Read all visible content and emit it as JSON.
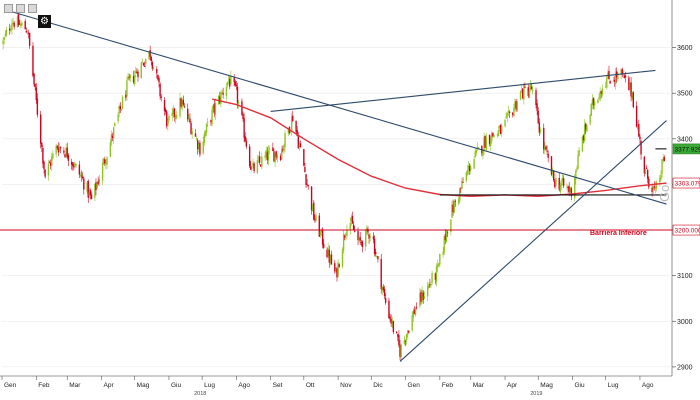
{
  "chart_data": {
    "type": "candlestick",
    "title": "",
    "xlabel": "",
    "ylabel": "",
    "ylim": [
      2880,
      3700
    ],
    "y_ticks": [
      2900,
      3000,
      3100,
      3200,
      3300,
      3400,
      3500,
      3600
    ],
    "x_ticks": [
      "Gen",
      "Feb",
      "Mar",
      "Apr",
      "Mag",
      "Giu",
      "Lug",
      "Ago",
      "Set",
      "Ott",
      "Nov",
      "Dic",
      "Gen",
      "Feb",
      "Mar",
      "Apr",
      "Mag",
      "Giu",
      "Lug",
      "Ago"
    ],
    "year_labels": [
      "2018",
      "2019"
    ],
    "price_tags": [
      {
        "label": "3377.9299",
        "value": 3377.93,
        "color": "#3aa935",
        "text_color": "#111111"
      },
      {
        "label": "3303.0791",
        "value": 3303.08,
        "color": "#ffffff",
        "text_color": "#d0021b"
      },
      {
        "label": "3200.0000",
        "value": 3200.0,
        "color": "#ffffff",
        "text_color": "#d0021b"
      }
    ],
    "barrier": {
      "label": "Barriera Inferiore",
      "value": 3200
    },
    "annotations": {
      "horizontal_support": {
        "from": "2019-02-01",
        "to": "2019-08-25",
        "value": 3277
      },
      "resistance_segment": {
        "from": "2019-08-15",
        "to": "2019-08-25",
        "value": 3378
      }
    },
    "trendlines": [
      {
        "name": "",
        "from": [
          "2018-01-08",
          3680
        ],
        "to": [
          "2019-08-25",
          3257
        ]
      },
      {
        "name": "",
        "from": [
          "2018-09-01",
          3460
        ],
        "to": [
          "2019-08-15",
          3550
        ]
      },
      {
        "name": "",
        "from": [
          "2018-12-27",
          2912
        ],
        "to": [
          "2019-08-25",
          3440
        ]
      }
    ],
    "moving_average": {
      "color": "#e0303a",
      "points": [
        [
          "2018-07-10",
          3487
        ],
        [
          "2018-08-01",
          3475
        ],
        [
          "2018-09-01",
          3446
        ],
        [
          "2018-10-01",
          3400
        ],
        [
          "2018-11-01",
          3355
        ],
        [
          "2018-12-01",
          3318
        ],
        [
          "2019-01-01",
          3292
        ],
        [
          "2019-02-01",
          3278
        ],
        [
          "2019-03-01",
          3274
        ],
        [
          "2019-04-01",
          3277
        ],
        [
          "2019-05-01",
          3274
        ],
        [
          "2019-06-01",
          3279
        ],
        [
          "2019-07-01",
          3287
        ],
        [
          "2019-08-01",
          3297
        ],
        [
          "2019-08-25",
          3303
        ]
      ]
    },
    "candles": {
      "up_color": "#8fc31f",
      "down_color": "#d0021b",
      "close_path": [
        [
          "2018-01-02",
          3610
        ],
        [
          "2018-01-10",
          3660
        ],
        [
          "2018-01-24",
          3640
        ],
        [
          "2018-02-01",
          3480
        ],
        [
          "2018-02-09",
          3320
        ],
        [
          "2018-02-20",
          3385
        ],
        [
          "2018-03-01",
          3370
        ],
        [
          "2018-03-15",
          3310
        ],
        [
          "2018-03-23",
          3265
        ],
        [
          "2018-04-10",
          3400
        ],
        [
          "2018-04-25",
          3520
        ],
        [
          "2018-05-15",
          3590
        ],
        [
          "2018-05-31",
          3430
        ],
        [
          "2018-06-12",
          3480
        ],
        [
          "2018-06-29",
          3380
        ],
        [
          "2018-07-10",
          3455
        ],
        [
          "2018-07-25",
          3530
        ],
        [
          "2018-08-01",
          3500
        ],
        [
          "2018-08-15",
          3330
        ],
        [
          "2018-08-30",
          3365
        ],
        [
          "2018-09-10",
          3370
        ],
        [
          "2018-09-21",
          3450
        ],
        [
          "2018-10-01",
          3340
        ],
        [
          "2018-10-10",
          3230
        ],
        [
          "2018-10-30",
          3100
        ],
        [
          "2018-11-10",
          3230
        ],
        [
          "2018-11-20",
          3170
        ],
        [
          "2018-12-01",
          3200
        ],
        [
          "2018-12-13",
          3050
        ],
        [
          "2018-12-27",
          2935
        ],
        [
          "2019-01-10",
          3030
        ],
        [
          "2019-01-30",
          3110
        ],
        [
          "2019-02-10",
          3230
        ],
        [
          "2019-02-28",
          3340
        ],
        [
          "2019-03-15",
          3400
        ],
        [
          "2019-03-30",
          3420
        ],
        [
          "2019-04-15",
          3500
        ],
        [
          "2019-04-25",
          3510
        ],
        [
          "2019-05-05",
          3390
        ],
        [
          "2019-05-15",
          3310
        ],
        [
          "2019-05-31",
          3285
        ],
        [
          "2019-06-10",
          3400
        ],
        [
          "2019-06-20",
          3480
        ],
        [
          "2019-07-01",
          3530
        ],
        [
          "2019-07-15",
          3540
        ],
        [
          "2019-07-25",
          3500
        ],
        [
          "2019-08-05",
          3330
        ],
        [
          "2019-08-15",
          3280
        ],
        [
          "2019-08-25",
          3378
        ]
      ]
    },
    "watermark": "Go",
    "colors": {
      "trendline": "#2e4a6b",
      "barrier": "#d0021b",
      "support": "#111111",
      "grid": "#e9e9e9"
    }
  },
  "toolbar": {
    "buttons": [
      "zoom-in-button",
      "draw-tool-button",
      "chart-type-button"
    ],
    "settings_icon": "gear-icon",
    "settings_glyph": "⚙"
  }
}
